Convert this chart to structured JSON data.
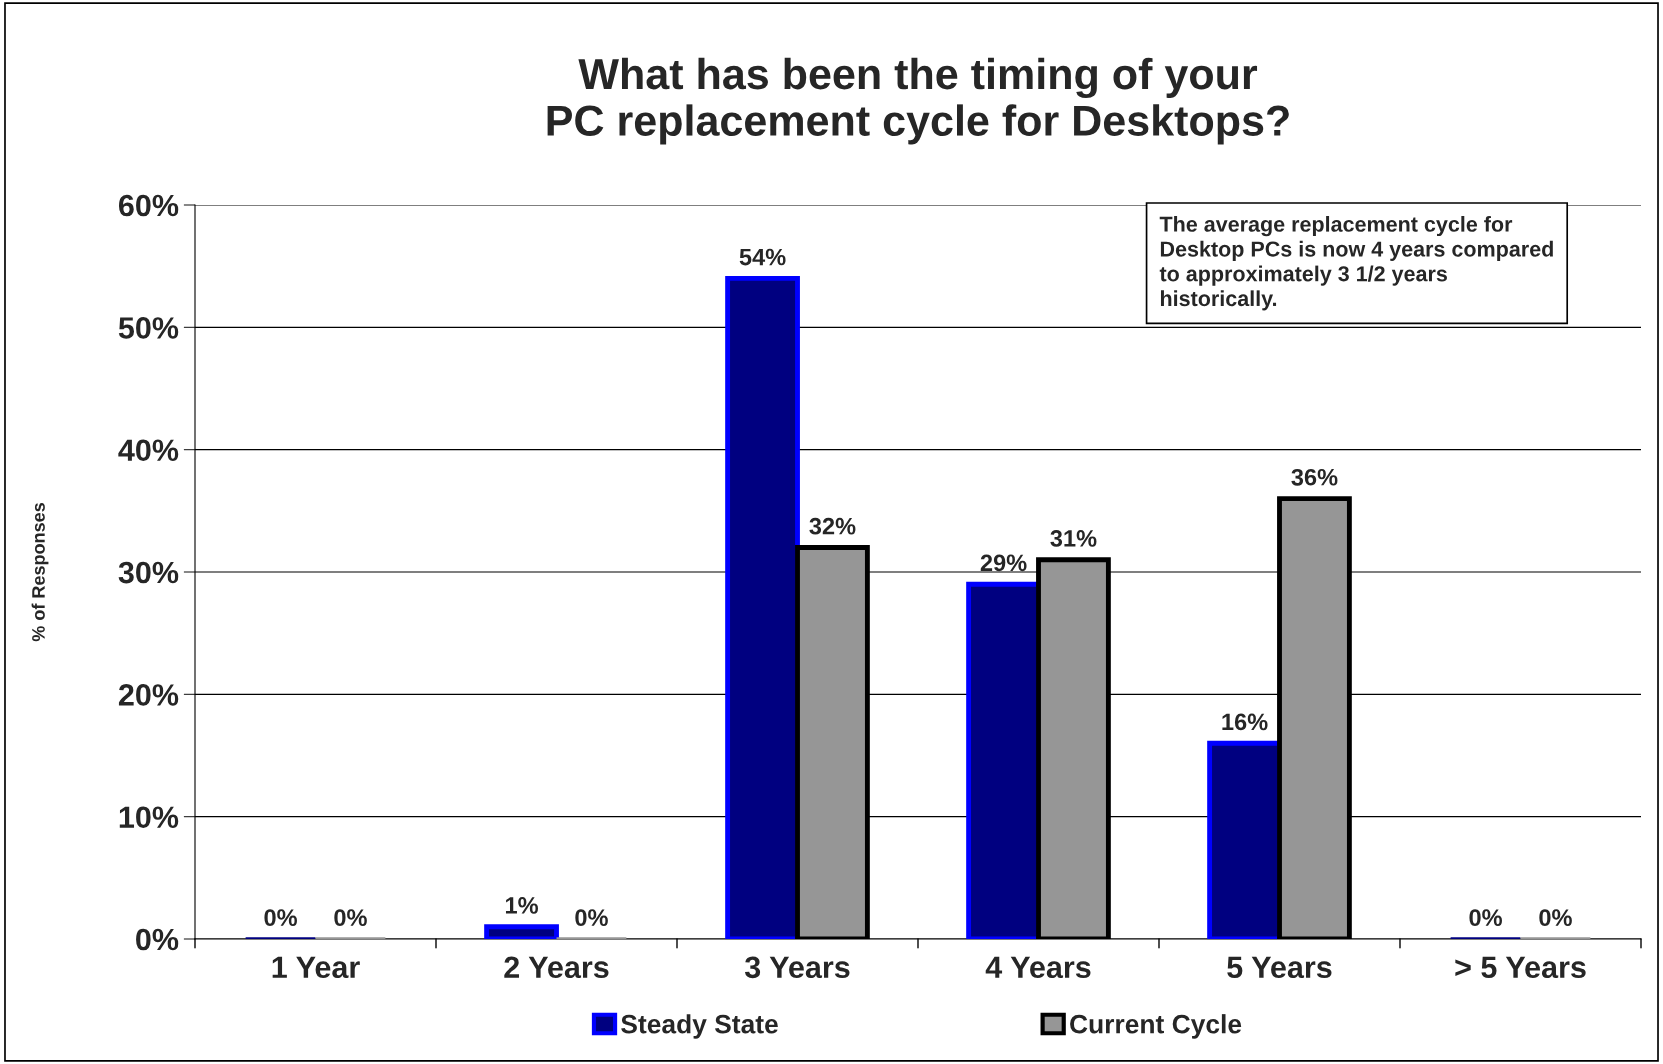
{
  "chart_data": {
    "type": "bar",
    "title": "What has been the timing of your\nPC replacement cycle for Desktops?",
    "ylabel": "% of Responses",
    "categories": [
      "1 Year",
      "2 Years",
      "3 Years",
      "4 Years",
      "5 Years",
      "> 5 Years"
    ],
    "series": [
      {
        "name": "Steady State",
        "color": "#000080",
        "values": [
          0,
          1,
          54,
          29,
          16,
          0
        ],
        "value_labels": [
          "0%",
          "1%",
          "54%",
          "29%",
          "16%",
          "0%"
        ]
      },
      {
        "name": "Current Cycle",
        "color": "#969696",
        "values": [
          0,
          0,
          32,
          31,
          36,
          0
        ],
        "value_labels": [
          "0%",
          "0%",
          "32%",
          "31%",
          "36%",
          "0%"
        ]
      }
    ],
    "ylim": [
      0,
      60
    ],
    "yticks": [
      {
        "value": 0,
        "label": "0%"
      },
      {
        "value": 10,
        "label": "10%"
      },
      {
        "value": 20,
        "label": "20%"
      },
      {
        "value": 30,
        "label": "30%"
      },
      {
        "value": 40,
        "label": "40%"
      },
      {
        "value": 50,
        "label": "50%"
      },
      {
        "value": 60,
        "label": "60%"
      }
    ],
    "grid": "y",
    "legend": "bottom",
    "annotations": [
      "The average replacement cycle for\nDesktop PCs is now 4 years compared\nto approximately 3 1/2 years\nhistorically."
    ]
  }
}
